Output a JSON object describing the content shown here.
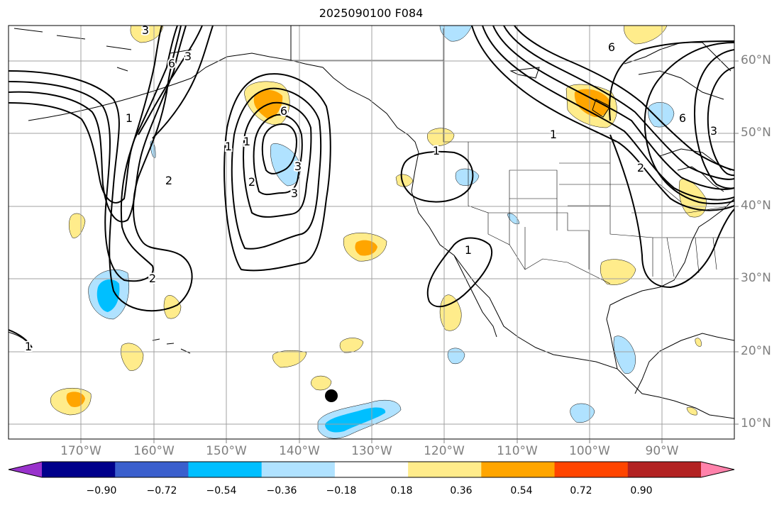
{
  "title": "2025090100 F084",
  "lon_labels": [
    "170°W",
    "160°W",
    "150°W",
    "140°W",
    "130°W",
    "120°W",
    "110°W",
    "100°W",
    "90°W"
  ],
  "lat_labels": [
    "60°N",
    "50°N",
    "40°N",
    "30°N",
    "20°N",
    "10°N"
  ],
  "colorbar": {
    "ticks": [
      "−0.90",
      "−0.72",
      "−0.54",
      "−0.36",
      "−0.18",
      "0.18",
      "0.36",
      "0.54",
      "0.72",
      "0.90"
    ],
    "colors": [
      "#9932cc",
      "#00008b",
      "#3a5fcd",
      "#00bfff",
      "#b0e2ff",
      "#ffffff",
      "#ffec8b",
      "#ffa500",
      "#ff4500",
      "#b22222",
      "#ff82ab"
    ]
  },
  "contour_labels": [
    "1",
    "2",
    "3",
    "6",
    "1",
    "2",
    "1",
    "3",
    "2",
    "3",
    "6",
    "1",
    "1",
    "3",
    "6",
    "1",
    "2",
    "6",
    "3",
    "1"
  ]
}
